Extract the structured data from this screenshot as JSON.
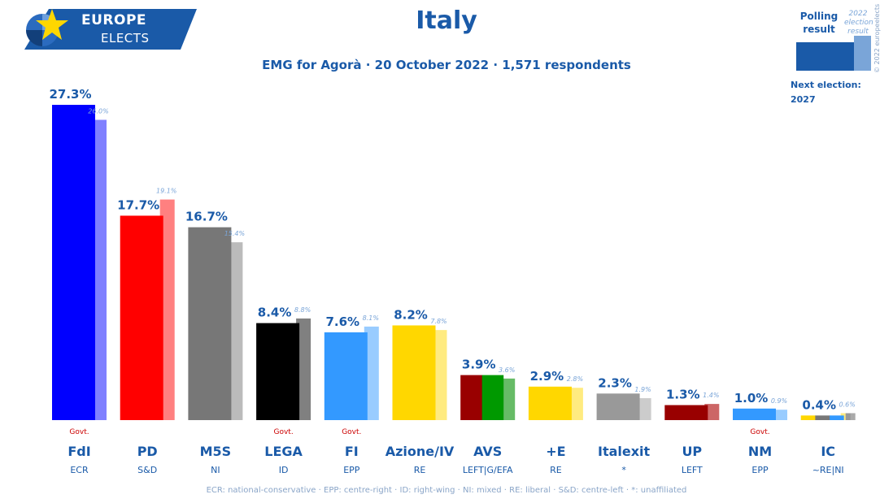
{
  "logo": {
    "line1": "EUROPE",
    "line2": "ELECTS"
  },
  "title": "Italy",
  "subtitle": "EMG for Agorà · 20 October 2022 · 1,571 respondents",
  "legend": {
    "polling": "Polling result",
    "election": "2022 election result",
    "next_election_label": "Next election:",
    "next_election_year": "2027"
  },
  "copyright": "© 2022 europeelects",
  "footer": "ECR: national-conservative · EPP: centre-right · ID: right-wing · NI: mixed · RE: liberal · S&D: centre-left · *: unaffiliated",
  "gov_label": "Govt.",
  "chart_data": {
    "type": "bar",
    "categories": [
      "FdI",
      "PD",
      "M5S",
      "LEGA",
      "FI",
      "Azione/IV",
      "AVS",
      "+E",
      "Italexit",
      "UP",
      "NM",
      "IC"
    ],
    "groups": [
      "ECR",
      "S&D",
      "NI",
      "ID",
      "EPP",
      "RE",
      "LEFT|G/EFA",
      "RE",
      "*",
      "LEFT",
      "EPP",
      "~RE|NI"
    ],
    "government": [
      true,
      false,
      false,
      true,
      true,
      false,
      false,
      false,
      false,
      false,
      true,
      false
    ],
    "series": [
      {
        "name": "Polling result",
        "values": [
          27.3,
          17.7,
          16.7,
          8.4,
          7.6,
          8.2,
          3.9,
          2.9,
          2.3,
          1.3,
          1.0,
          0.4
        ],
        "labels": [
          "27.3%",
          "17.7%",
          "16.7%",
          "8.4%",
          "7.6%",
          "8.2%",
          "3.9%",
          "2.9%",
          "2.3%",
          "1.3%",
          "1.0%",
          "0.4%"
        ]
      },
      {
        "name": "2022 election result",
        "values": [
          26.0,
          19.1,
          15.4,
          8.8,
          8.1,
          7.8,
          3.6,
          2.8,
          1.9,
          1.4,
          0.9,
          0.6
        ],
        "labels": [
          "26.0%",
          "19.1%",
          "15.4%",
          "8.8%",
          "8.1%",
          "7.8%",
          "3.6%",
          "2.8%",
          "1.9%",
          "1.4%",
          "0.9%",
          "0.6%"
        ]
      }
    ],
    "colors": [
      [
        "#0000ff"
      ],
      [
        "#ff0000"
      ],
      [
        "#777777"
      ],
      [
        "#000000"
      ],
      [
        "#3399ff"
      ],
      [
        "#ffd700"
      ],
      [
        "#990000",
        "#009900"
      ],
      [
        "#ffd700"
      ],
      [
        "#999999"
      ],
      [
        "#990000"
      ],
      [
        "#3399ff"
      ],
      [
        "#ffd700",
        "#777777",
        "#3399ff"
      ]
    ],
    "election_colors": [
      [
        "#8080ff"
      ],
      [
        "#ff8080"
      ],
      [
        "#bbbbbb"
      ],
      [
        "#808080"
      ],
      [
        "#99ccff"
      ],
      [
        "#ffeb80"
      ],
      [
        "#66bb66"
      ],
      [
        "#ffeb80"
      ],
      [
        "#cccccc"
      ],
      [
        "#cc6666"
      ],
      [
        "#99ccff"
      ],
      [
        "#ffeb80",
        "#999999",
        "#aaaaaa"
      ]
    ],
    "ylim": [
      0,
      28.5
    ],
    "xlabel": "",
    "ylabel": ""
  }
}
